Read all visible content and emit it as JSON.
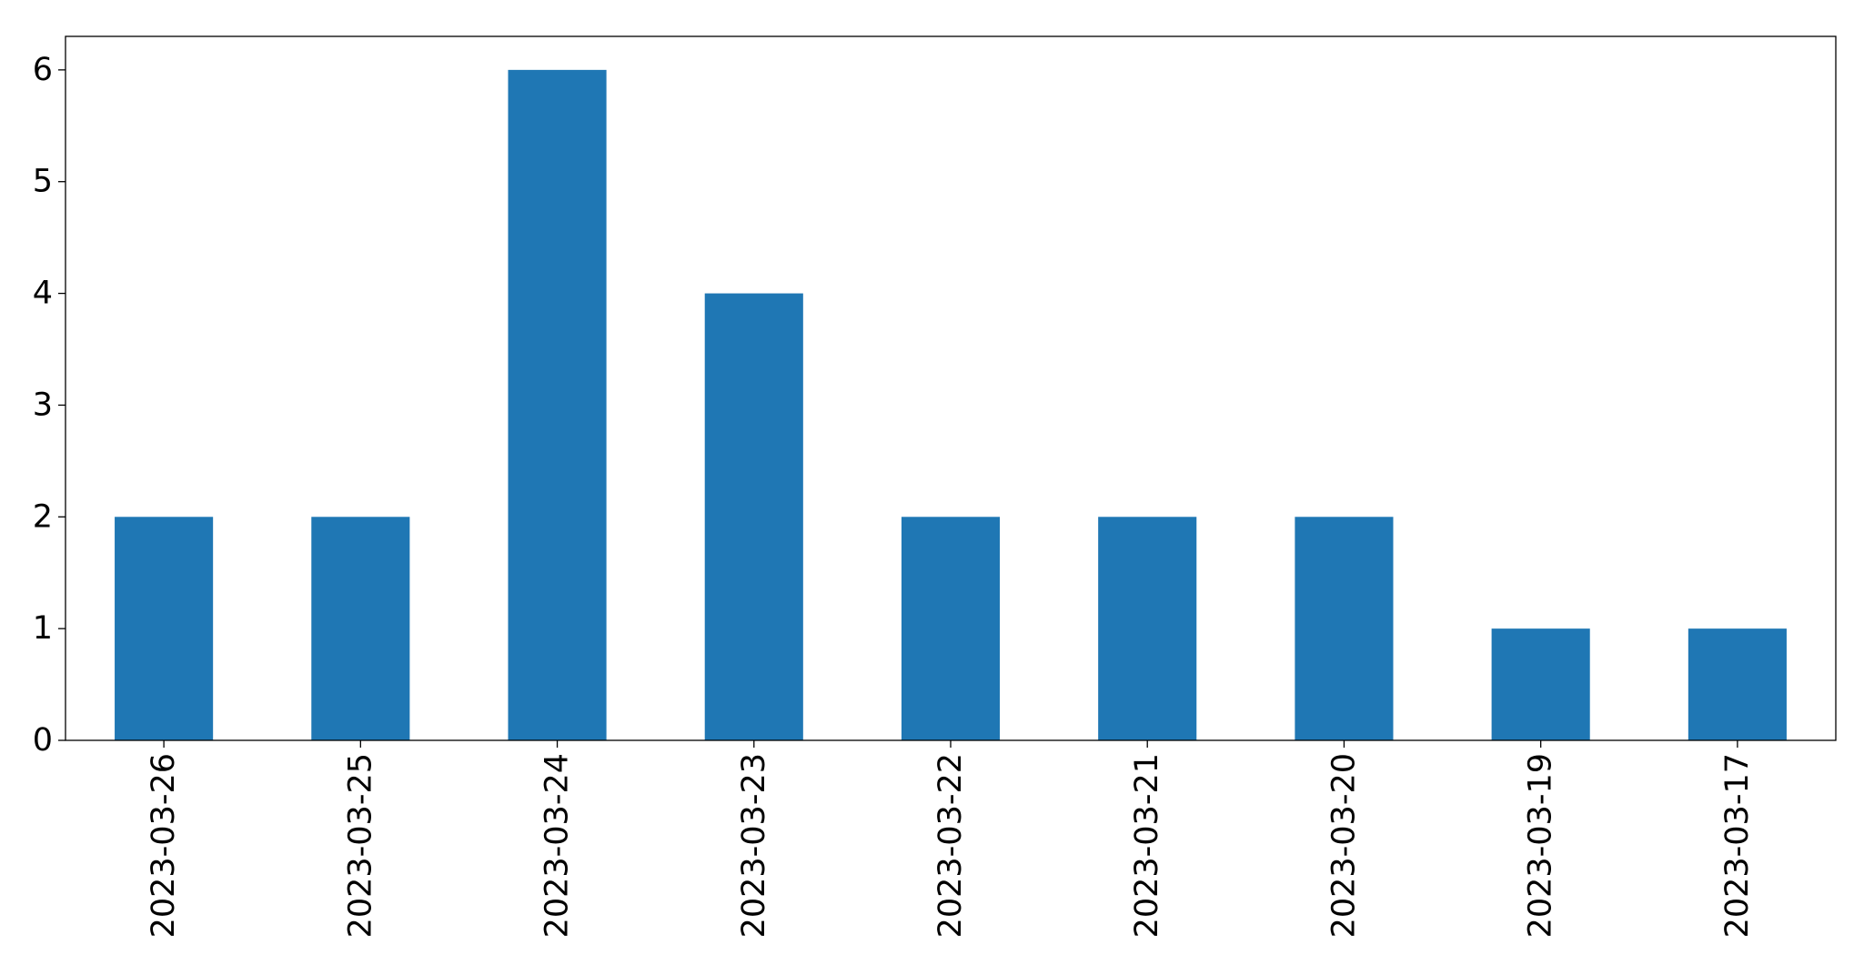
{
  "chart_data": {
    "type": "bar",
    "title": "",
    "xlabel": "",
    "ylabel": "",
    "categories": [
      "2023-03-26",
      "2023-03-25",
      "2023-03-24",
      "2023-03-23",
      "2023-03-22",
      "2023-03-21",
      "2023-03-20",
      "2023-03-19",
      "2023-03-17"
    ],
    "values": [
      2,
      2,
      6,
      4,
      2,
      2,
      2,
      1,
      1
    ],
    "ylim": [
      0,
      6.3
    ],
    "yticks": [
      "0",
      "1",
      "2",
      "3",
      "4",
      "5",
      "6"
    ],
    "x_tick_rotation": "vertical",
    "grid": false,
    "legend": "none",
    "bar_color": "#1f77b4"
  }
}
